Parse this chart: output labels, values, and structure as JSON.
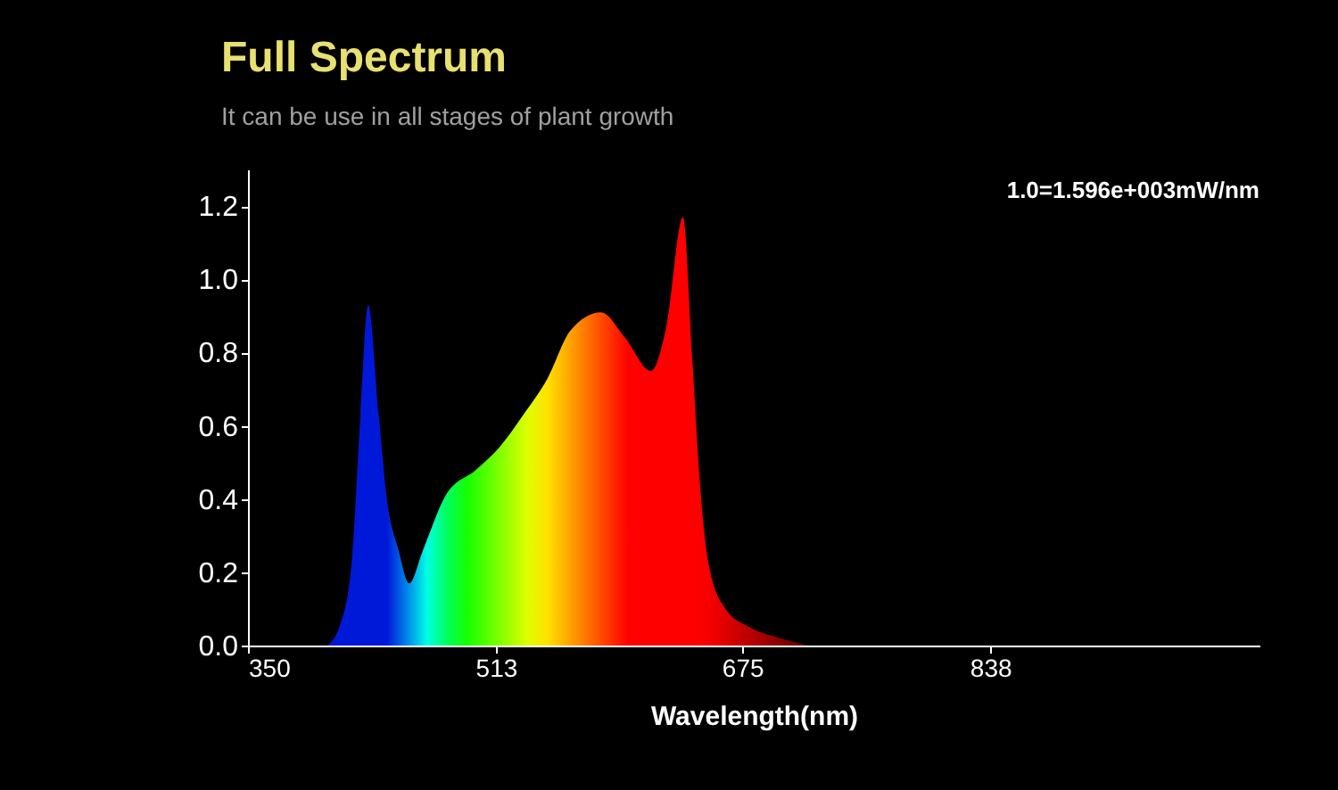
{
  "chart_data": {
    "type": "area",
    "title": "Full Spectrum",
    "subtitle": "It can be use in all stages of plant growth",
    "xlabel": "Wavelength(nm)",
    "annotations": [
      "1.0=1.596e+003mW/nm"
    ],
    "xlim": [
      350,
      1015
    ],
    "xticks": [
      350,
      513,
      675,
      838
    ],
    "ylim": [
      0,
      1.3
    ],
    "yticks": [
      {
        "value": 0,
        "label": "0.0"
      },
      0.2,
      0.4,
      0.6,
      0.8,
      {
        "value": 1,
        "label": "1.0"
      },
      1.2
    ],
    "grid": false,
    "series": [
      {
        "x": [
          402,
          410,
          418,
          424,
          429,
          436,
          441,
          449,
          456,
          465,
          480,
          500,
          515,
          531,
          547,
          562,
          582,
          598,
          615,
          625,
          636,
          642,
          647,
          653,
          664,
          680,
          700,
          718
        ],
        "values": [
          0,
          0.05,
          0.22,
          0.63,
          0.93,
          0.63,
          0.41,
          0.26,
          0.17,
          0.26,
          0.41,
          0.48,
          0.54,
          0.63,
          0.73,
          0.86,
          0.91,
          0.84,
          0.75,
          0.87,
          1.17,
          0.79,
          0.45,
          0.22,
          0.1,
          0.05,
          0.02,
          0
        ]
      }
    ]
  }
}
